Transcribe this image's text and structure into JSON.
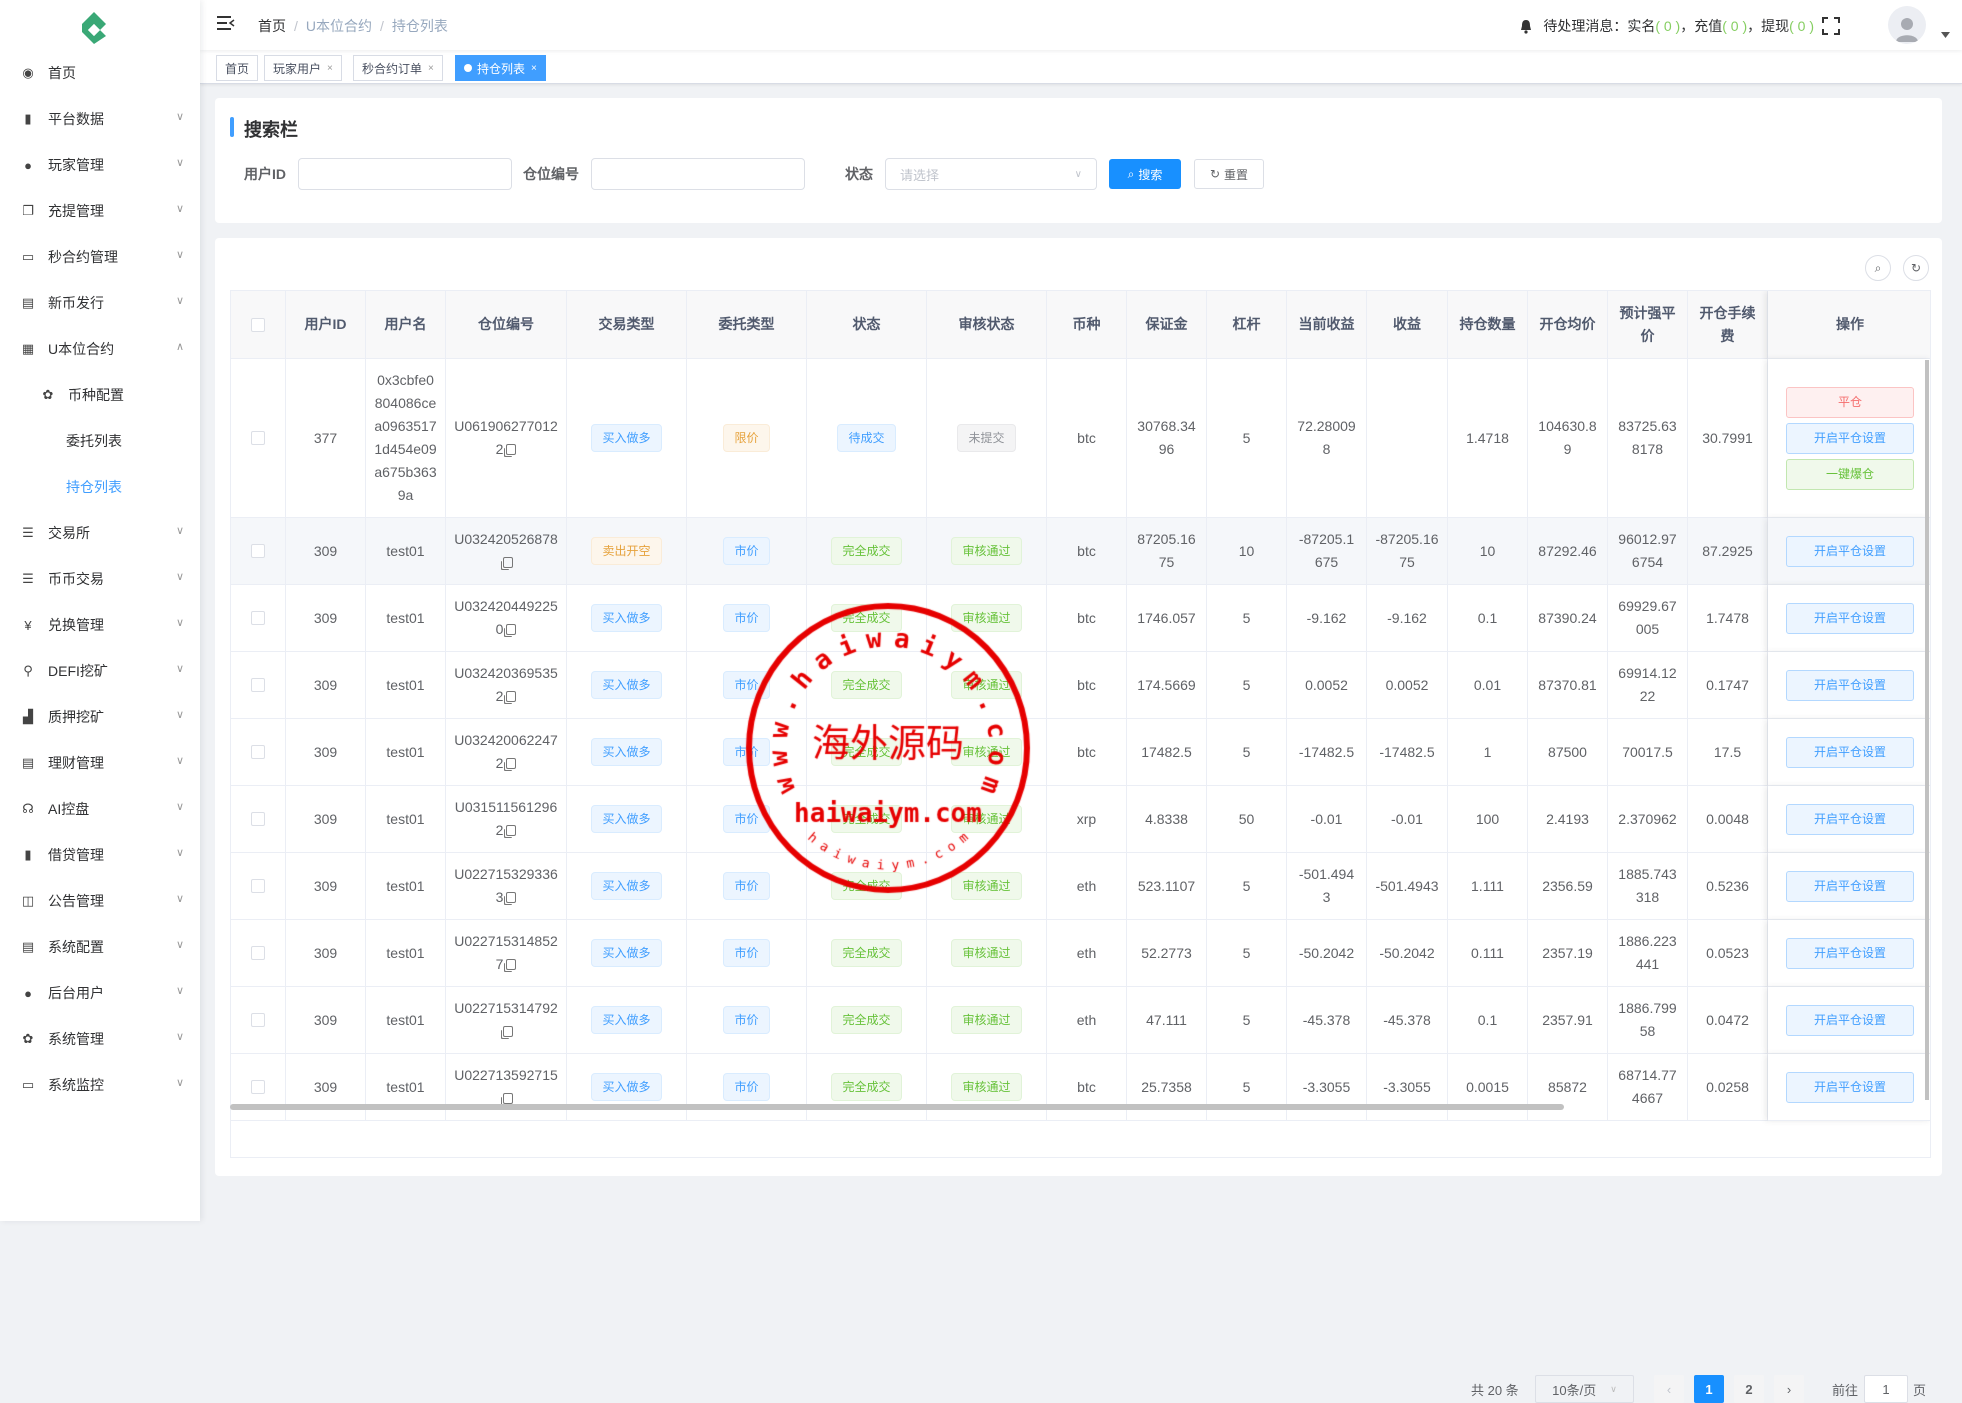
{
  "sidebar": {
    "items": [
      {
        "label": "首页",
        "icon": "dashboard-icon",
        "chevron": false
      },
      {
        "label": "平台数据",
        "icon": "book-icon",
        "chevron": true
      },
      {
        "label": "玩家管理",
        "icon": "user-icon",
        "chevron": true
      },
      {
        "label": "充提管理",
        "icon": "copy-icon",
        "chevron": true
      },
      {
        "label": "秒合约管理",
        "icon": "monitor-icon",
        "chevron": true
      },
      {
        "label": "新币发行",
        "icon": "newspaper-icon",
        "chevron": true
      },
      {
        "label": "U本位合约",
        "icon": "table-icon",
        "chevron": true,
        "expanded": true
      },
      {
        "label": "币种配置",
        "icon": "gear-icon",
        "level": 1
      },
      {
        "label": "委托列表",
        "level": 2
      },
      {
        "label": "持仓列表",
        "level": 2,
        "active": true
      },
      {
        "label": "交易所",
        "icon": "list-icon",
        "chevron": true
      },
      {
        "label": "币币交易",
        "icon": "list-icon",
        "chevron": true
      },
      {
        "label": "兑换管理",
        "icon": "yen-icon",
        "chevron": true
      },
      {
        "label": "DEFI挖矿",
        "icon": "person-run-icon",
        "chevron": true
      },
      {
        "label": "质押挖矿",
        "icon": "bar-chart-icon",
        "chevron": true
      },
      {
        "label": "理财管理",
        "icon": "document-icon",
        "chevron": true
      },
      {
        "label": "AI控盘",
        "icon": "robot-icon",
        "chevron": true
      },
      {
        "label": "借贷管理",
        "icon": "book-icon",
        "chevron": true
      },
      {
        "label": "公告管理",
        "icon": "open-book-icon",
        "chevron": true
      },
      {
        "label": "系统配置",
        "icon": "document-icon",
        "chevron": true
      },
      {
        "label": "后台用户",
        "icon": "users-icon",
        "chevron": true
      },
      {
        "label": "系统管理",
        "icon": "gear-icon",
        "chevron": true
      },
      {
        "label": "系统监控",
        "icon": "monitor-icon",
        "chevron": true
      }
    ]
  },
  "header": {
    "breadcrumb": [
      "首页",
      "U本位合约",
      "持仓列表"
    ],
    "notice_label": "待处理消息：",
    "notices": [
      {
        "label": "实名",
        "count": "( 0 )",
        "sep": "，"
      },
      {
        "label": "充值",
        "count": "( 0 )",
        "sep": "，"
      },
      {
        "label": "提现",
        "count": "( 0 )",
        "sep": ""
      }
    ]
  },
  "tabs": [
    {
      "label": "首页",
      "closable": false
    },
    {
      "label": "玩家用户",
      "closable": true
    },
    {
      "label": "秒合约订单",
      "closable": true
    },
    {
      "label": "持仓列表",
      "closable": true,
      "active": true
    }
  ],
  "search": {
    "title": "搜索栏",
    "user_id_label": "用户ID",
    "user_id_value": "",
    "position_label": "仓位编号",
    "position_value": "",
    "status_label": "状态",
    "status_placeholder": "请选择",
    "search_button": "搜索",
    "reset_button": "重置"
  },
  "table": {
    "columns": [
      "用户ID",
      "用户名",
      "仓位编号",
      "交易类型",
      "委托类型",
      "状态",
      "审核状态",
      "币种",
      "保证金",
      "杠杆",
      "当前收益",
      "收益",
      "持仓数量",
      "开仓均价",
      "预计强平价",
      "开仓手续费",
      "操作"
    ],
    "rows": [
      {
        "uid": "377",
        "name": "0x3cbfe0804086cea09635171d454e09a675b3639a",
        "pos": "U0619062770122",
        "trade": "买入做多",
        "order": "限价",
        "status": "待成交",
        "audit": "未提交",
        "coin": "btc",
        "margin": "30768.3496",
        "lev": "5",
        "cur": "72.280098",
        "pnl": "",
        "qty": "1.4718",
        "avg": "104630.89",
        "liq": "83725.638178",
        "fee": "30.7991",
        "actions": [
          "平仓",
          "开启平仓设置",
          "一键爆仓"
        ]
      },
      {
        "uid": "309",
        "name": "test01",
        "pos": "U032420526878",
        "trade": "卖出开空",
        "order": "市价",
        "status": "完全成交",
        "audit": "审核通过",
        "coin": "btc",
        "margin": "87205.1675",
        "lev": "10",
        "cur": "-87205.1675",
        "pnl": "-87205.1675",
        "qty": "10",
        "avg": "87292.46",
        "liq": "96012.976754",
        "fee": "87.2925",
        "actions": [
          "开启平仓设置"
        ]
      },
      {
        "uid": "309",
        "name": "test01",
        "pos": "U0324204492250",
        "trade": "买入做多",
        "order": "市价",
        "status": "完全成交",
        "audit": "审核通过",
        "coin": "btc",
        "margin": "1746.057",
        "lev": "5",
        "cur": "-9.162",
        "pnl": "-9.162",
        "qty": "0.1",
        "avg": "87390.24",
        "liq": "69929.67005",
        "fee": "1.7478",
        "actions": [
          "开启平仓设置"
        ]
      },
      {
        "uid": "309",
        "name": "test01",
        "pos": "U0324203695352",
        "trade": "买入做多",
        "order": "市价",
        "status": "完全成交",
        "audit": "审核通过",
        "coin": "btc",
        "margin": "174.5669",
        "lev": "5",
        "cur": "0.0052",
        "pnl": "0.0052",
        "qty": "0.01",
        "avg": "87370.81",
        "liq": "69914.1222",
        "fee": "0.1747",
        "actions": [
          "开启平仓设置"
        ]
      },
      {
        "uid": "309",
        "name": "test01",
        "pos": "U0324200622472",
        "trade": "买入做多",
        "order": "市价",
        "status": "完全成交",
        "audit": "审核通过",
        "coin": "btc",
        "margin": "17482.5",
        "lev": "5",
        "cur": "-17482.5",
        "pnl": "-17482.5",
        "qty": "1",
        "avg": "87500",
        "liq": "70017.5",
        "fee": "17.5",
        "actions": [
          "开启平仓设置"
        ]
      },
      {
        "uid": "309",
        "name": "test01",
        "pos": "U0315115612962",
        "trade": "买入做多",
        "order": "市价",
        "status": "完全成交",
        "audit": "审核通过",
        "coin": "xrp",
        "margin": "4.8338",
        "lev": "50",
        "cur": "-0.01",
        "pnl": "-0.01",
        "qty": "100",
        "avg": "2.4193",
        "liq": "2.370962",
        "fee": "0.0048",
        "actions": [
          "开启平仓设置"
        ]
      },
      {
        "uid": "309",
        "name": "test01",
        "pos": "U0227153293363",
        "trade": "买入做多",
        "order": "市价",
        "status": "完全成交",
        "audit": "审核通过",
        "coin": "eth",
        "margin": "523.1107",
        "lev": "5",
        "cur": "-501.4943",
        "pnl": "-501.4943",
        "qty": "1.111",
        "avg": "2356.59",
        "liq": "1885.743318",
        "fee": "0.5236",
        "actions": [
          "开启平仓设置"
        ]
      },
      {
        "uid": "309",
        "name": "test01",
        "pos": "U0227153148527",
        "trade": "买入做多",
        "order": "市价",
        "status": "完全成交",
        "audit": "审核通过",
        "coin": "eth",
        "margin": "52.2773",
        "lev": "5",
        "cur": "-50.2042",
        "pnl": "-50.2042",
        "qty": "0.111",
        "avg": "2357.19",
        "liq": "1886.223441",
        "fee": "0.0523",
        "actions": [
          "开启平仓设置"
        ]
      },
      {
        "uid": "309",
        "name": "test01",
        "pos": "U022715314792",
        "trade": "买入做多",
        "order": "市价",
        "status": "完全成交",
        "audit": "审核通过",
        "coin": "eth",
        "margin": "47.111",
        "lev": "5",
        "cur": "-45.378",
        "pnl": "-45.378",
        "qty": "0.1",
        "avg": "2357.91",
        "liq": "1886.79958",
        "fee": "0.0472",
        "actions": [
          "开启平仓设置"
        ]
      },
      {
        "uid": "309",
        "name": "test01",
        "pos": "U022713592715",
        "trade": "买入做多",
        "order": "市价",
        "status": "完全成交",
        "audit": "审核通过",
        "coin": "btc",
        "margin": "25.7358",
        "lev": "5",
        "cur": "-3.3055",
        "pnl": "-3.3055",
        "qty": "0.0015",
        "avg": "85872",
        "liq": "68714.774667",
        "fee": "0.0258",
        "actions": [
          "开启平仓设置"
        ]
      }
    ]
  },
  "pagination": {
    "total_text": "共 20 条",
    "page_size": "10条/页",
    "pages": [
      "1",
      "2"
    ],
    "current": "1",
    "goto_label": "前往",
    "goto_value": "1",
    "goto_suffix": "页"
  },
  "watermark": {
    "center": "海外源码",
    "url": "haiwaiym.com",
    "arc_top": "www.haiwaiym.com",
    "arc_bottom": "haiwaiym.com"
  },
  "colors": {
    "primary": "#409eff",
    "success": "#67c23a",
    "warning": "#e6a23c",
    "danger": "#f56c6c",
    "info": "#909399",
    "stamp": "#e60000"
  }
}
